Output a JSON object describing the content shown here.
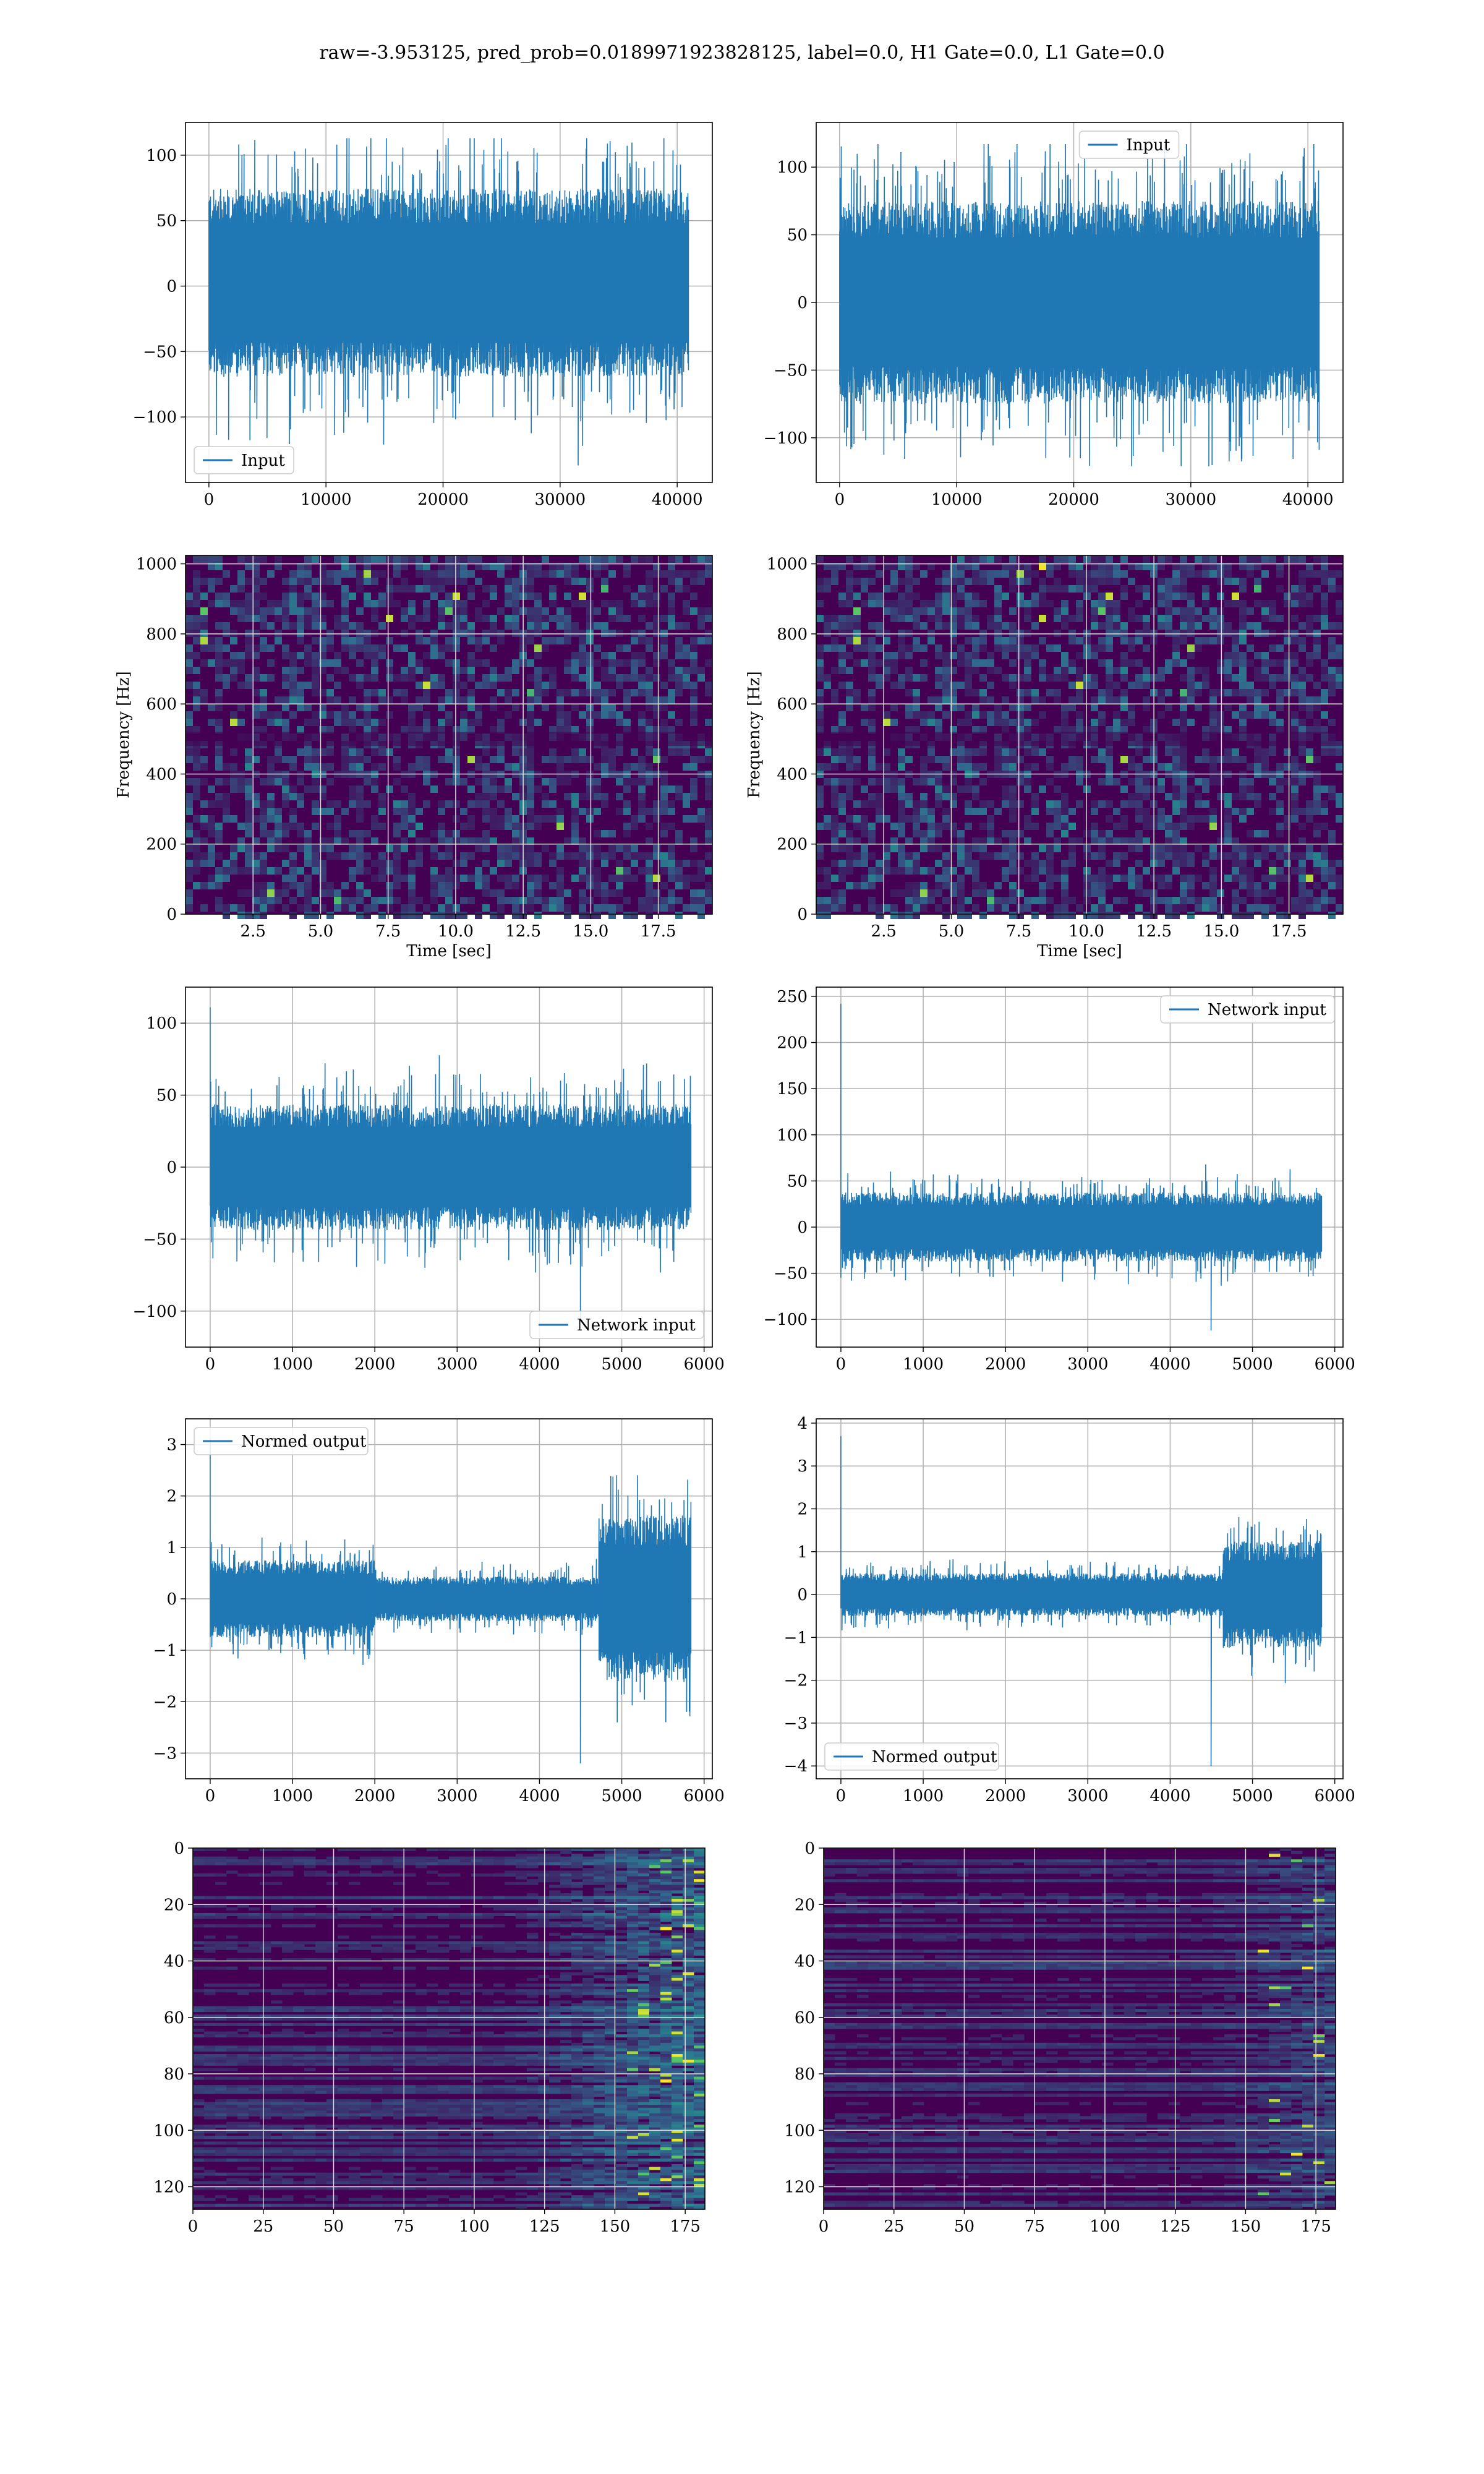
{
  "figure_title": "raw=-3.953125, pred_prob=0.0189971923828125, label=0.0, H1 Gate=0.0, L1 Gate=0.0",
  "colors": {
    "series": "#1f77b4",
    "heat_low": "#440154",
    "heat_mid": "#31688e",
    "heat_mid2": "#21918c",
    "heat_high": "#5ec962",
    "heat_max": "#fde725",
    "grid": "#b0b0b0",
    "grid_on_image": "#dcdcdc"
  },
  "chart_data": [
    {
      "id": "h1-input",
      "type": "line",
      "title": "",
      "xlabel": "",
      "ylabel": "",
      "xlim": [
        -2000,
        43000
      ],
      "ylim": [
        -150,
        125
      ],
      "xticks": [
        0,
        10000,
        20000,
        30000,
        40000
      ],
      "yticks": [
        -100,
        -50,
        0,
        50,
        100
      ],
      "grid": true,
      "legend": {
        "position": "lower-left",
        "entries": [
          "Input"
        ]
      },
      "series": [
        {
          "name": "Input",
          "x_range": [
            0,
            40960
          ],
          "y_band": [
            -55,
            60
          ],
          "y_min": -137,
          "y_max": 113
        }
      ]
    },
    {
      "id": "l1-input",
      "type": "line",
      "title": "",
      "xlabel": "",
      "ylabel": "",
      "xlim": [
        -2000,
        43000
      ],
      "ylim": [
        -133,
        133
      ],
      "xticks": [
        0,
        10000,
        20000,
        30000,
        40000
      ],
      "yticks": [
        -100,
        -50,
        0,
        50,
        100
      ],
      "grid": true,
      "legend": {
        "position": "top-center",
        "entries": [
          "Input"
        ]
      },
      "series": [
        {
          "name": "Input",
          "x_range": [
            0,
            40960
          ],
          "y_band": [
            -60,
            60
          ],
          "y_min": -121,
          "y_max": 117
        }
      ]
    },
    {
      "id": "h1-spectrogram",
      "type": "heatmap",
      "title": "",
      "xlabel": "Time [sec]",
      "ylabel": "Frequency [Hz]",
      "xlim": [
        0,
        19.5
      ],
      "ylim": [
        0,
        1024
      ],
      "xticks": [
        2.5,
        5.0,
        7.5,
        10.0,
        12.5,
        15.0,
        17.5
      ],
      "yticks": [
        0,
        200,
        400,
        600,
        800,
        1000
      ],
      "grid": true
    },
    {
      "id": "l1-spectrogram",
      "type": "heatmap",
      "title": "",
      "xlabel": "Time [sec]",
      "ylabel": "Frequency [Hz]",
      "xlim": [
        0,
        19.5
      ],
      "ylim": [
        0,
        1024
      ],
      "xticks": [
        2.5,
        5.0,
        7.5,
        10.0,
        12.5,
        15.0,
        17.5
      ],
      "yticks": [
        0,
        200,
        400,
        600,
        800,
        1000
      ],
      "grid": true
    },
    {
      "id": "h1-network-input",
      "type": "line",
      "title": "",
      "xlabel": "",
      "ylabel": "",
      "xlim": [
        -300,
        6100
      ],
      "ylim": [
        -125,
        125
      ],
      "xticks": [
        0,
        1000,
        2000,
        3000,
        4000,
        5000,
        6000
      ],
      "yticks": [
        -100,
        -50,
        0,
        50,
        100
      ],
      "grid": true,
      "legend": {
        "position": "lower-right",
        "entries": [
          "Network input"
        ]
      },
      "series": [
        {
          "name": "Network input",
          "x_range": [
            0,
            5840
          ],
          "y_band": [
            -35,
            35
          ],
          "y_min": -114,
          "y_max": 111
        }
      ]
    },
    {
      "id": "l1-network-input",
      "type": "line",
      "title": "",
      "xlabel": "",
      "ylabel": "",
      "xlim": [
        -300,
        6100
      ],
      "ylim": [
        -130,
        260
      ],
      "xticks": [
        0,
        1000,
        2000,
        3000,
        4000,
        5000,
        6000
      ],
      "yticks": [
        -100,
        -50,
        0,
        50,
        100,
        150,
        200,
        250
      ],
      "grid": true,
      "legend": {
        "position": "top-right",
        "entries": [
          "Network input"
        ]
      },
      "series": [
        {
          "name": "Network input",
          "x_range": [
            0,
            5840
          ],
          "y_band": [
            -30,
            30
          ],
          "y_min": -112,
          "y_max": 242
        }
      ]
    },
    {
      "id": "h1-normed-output",
      "type": "line",
      "title": "",
      "xlabel": "",
      "ylabel": "",
      "xlim": [
        -300,
        6100
      ],
      "ylim": [
        -3.5,
        3.5
      ],
      "xticks": [
        0,
        1000,
        2000,
        3000,
        4000,
        5000,
        6000
      ],
      "yticks": [
        -3,
        -2,
        -1,
        0,
        1,
        2,
        3
      ],
      "grid": true,
      "legend": {
        "position": "top-left",
        "entries": [
          "Normed output"
        ]
      },
      "series": [
        {
          "name": "Normed output",
          "x_range": [
            0,
            5840
          ],
          "segments": [
            {
              "x": [
                0,
                2000
              ],
              "y_band": [
                -0.6,
                0.6
              ]
            },
            {
              "x": [
                2000,
                4720
              ],
              "y_band": [
                -0.35,
                0.35
              ]
            },
            {
              "x": [
                4720,
                5840
              ],
              "y_band": [
                -1.3,
                1.3
              ]
            }
          ],
          "y_min": -3.2,
          "y_max": 3.1
        }
      ]
    },
    {
      "id": "l1-normed-output",
      "type": "line",
      "title": "",
      "xlabel": "",
      "ylabel": "",
      "xlim": [
        -300,
        6100
      ],
      "ylim": [
        -4.3,
        4.1
      ],
      "xticks": [
        0,
        1000,
        2000,
        3000,
        4000,
        5000,
        6000
      ],
      "yticks": [
        -4,
        -3,
        -2,
        -1,
        0,
        1,
        2,
        3,
        4
      ],
      "grid": true,
      "legend": {
        "position": "lower-left",
        "entries": [
          "Normed output"
        ]
      },
      "series": [
        {
          "name": "Normed output",
          "x_range": [
            0,
            5840
          ],
          "segments": [
            {
              "x": [
                0,
                4640
              ],
              "y_band": [
                -0.4,
                0.4
              ]
            },
            {
              "x": [
                4640,
                5840
              ],
              "y_band": [
                -1.0,
                1.0
              ]
            }
          ],
          "y_min": -4.0,
          "y_max": 3.7
        }
      ]
    },
    {
      "id": "h1-embedding",
      "type": "heatmap",
      "title": "",
      "xlabel": "",
      "ylabel": "",
      "xlim": [
        0,
        182
      ],
      "ylim": [
        128,
        0
      ],
      "xticks": [
        0,
        25,
        50,
        75,
        100,
        125,
        150,
        175
      ],
      "yticks": [
        0,
        20,
        40,
        60,
        80,
        100,
        120
      ],
      "grid": true
    },
    {
      "id": "l1-embedding",
      "type": "heatmap",
      "title": "",
      "xlabel": "",
      "ylabel": "",
      "xlim": [
        0,
        182
      ],
      "ylim": [
        128,
        0
      ],
      "xticks": [
        0,
        25,
        50,
        75,
        100,
        125,
        150,
        175
      ],
      "yticks": [
        0,
        20,
        40,
        60,
        80,
        100,
        120
      ],
      "grid": true
    }
  ]
}
